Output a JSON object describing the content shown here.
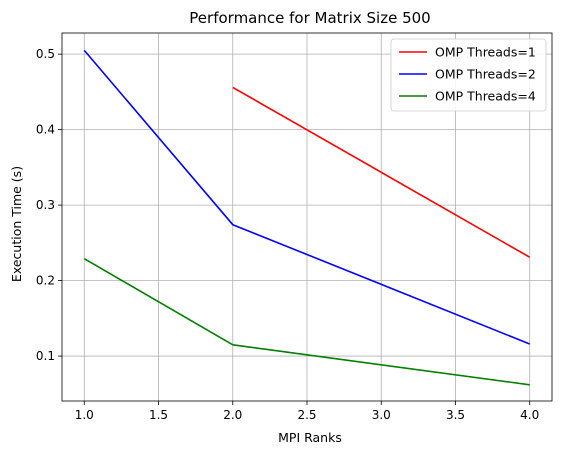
{
  "chart_data": {
    "type": "line",
    "title": "Performance for Matrix Size 500",
    "xlabel": "MPI Ranks",
    "ylabel": "Execution Time (s)",
    "xlim": [
      0.85,
      4.15
    ],
    "ylim": [
      0.0405,
      0.528
    ],
    "xticks": [
      1.0,
      1.5,
      2.0,
      2.5,
      3.0,
      3.5,
      4.0
    ],
    "xtick_labels": [
      "1.0",
      "1.5",
      "2.0",
      "2.5",
      "3.0",
      "3.5",
      "4.0"
    ],
    "yticks": [
      0.1,
      0.2,
      0.3,
      0.4,
      0.5
    ],
    "ytick_labels": [
      "0.1",
      "0.2",
      "0.3",
      "0.4",
      "0.5"
    ],
    "grid": true,
    "legend_position": "top-right",
    "series": [
      {
        "name": "OMP Threads=1",
        "color": "#ff0000",
        "x": [
          2,
          4
        ],
        "y": [
          0.456,
          0.231
        ]
      },
      {
        "name": "OMP Threads=2",
        "color": "#0000ff",
        "x": [
          1,
          2,
          4
        ],
        "y": [
          0.505,
          0.274,
          0.116
        ]
      },
      {
        "name": "OMP Threads=4",
        "color": "#008000",
        "x": [
          1,
          2,
          4
        ],
        "y": [
          0.229,
          0.115,
          0.062
        ]
      }
    ]
  }
}
